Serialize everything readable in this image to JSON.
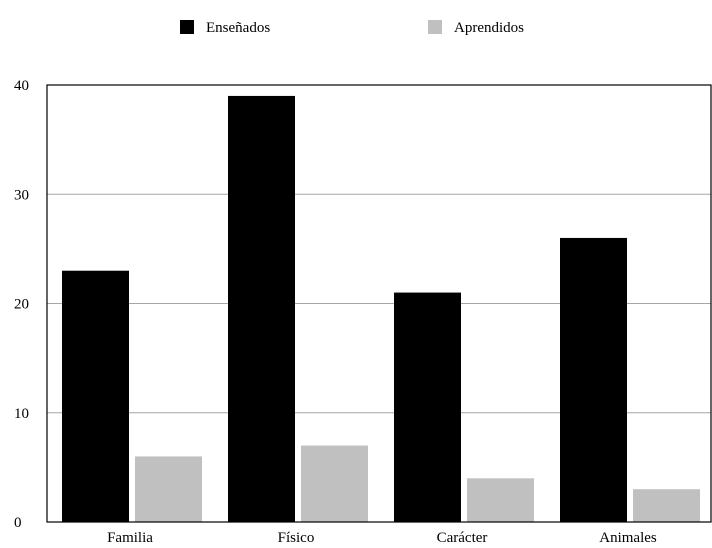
{
  "chart_data": {
    "type": "bar",
    "categories": [
      "Familia",
      "Físico",
      "Carácter",
      "Animales"
    ],
    "series": [
      {
        "name": "Enseñados",
        "values": [
          23,
          39,
          21,
          26
        ],
        "color": "#000000"
      },
      {
        "name": "Aprendidos",
        "values": [
          6,
          7,
          4,
          3
        ],
        "color": "#c0c0c0"
      }
    ],
    "ylim": [
      0,
      40
    ],
    "yticks": [
      0,
      10,
      20,
      30,
      40
    ],
    "grid": true,
    "legend_position": "top",
    "title": "",
    "xlabel": "",
    "ylabel": ""
  }
}
